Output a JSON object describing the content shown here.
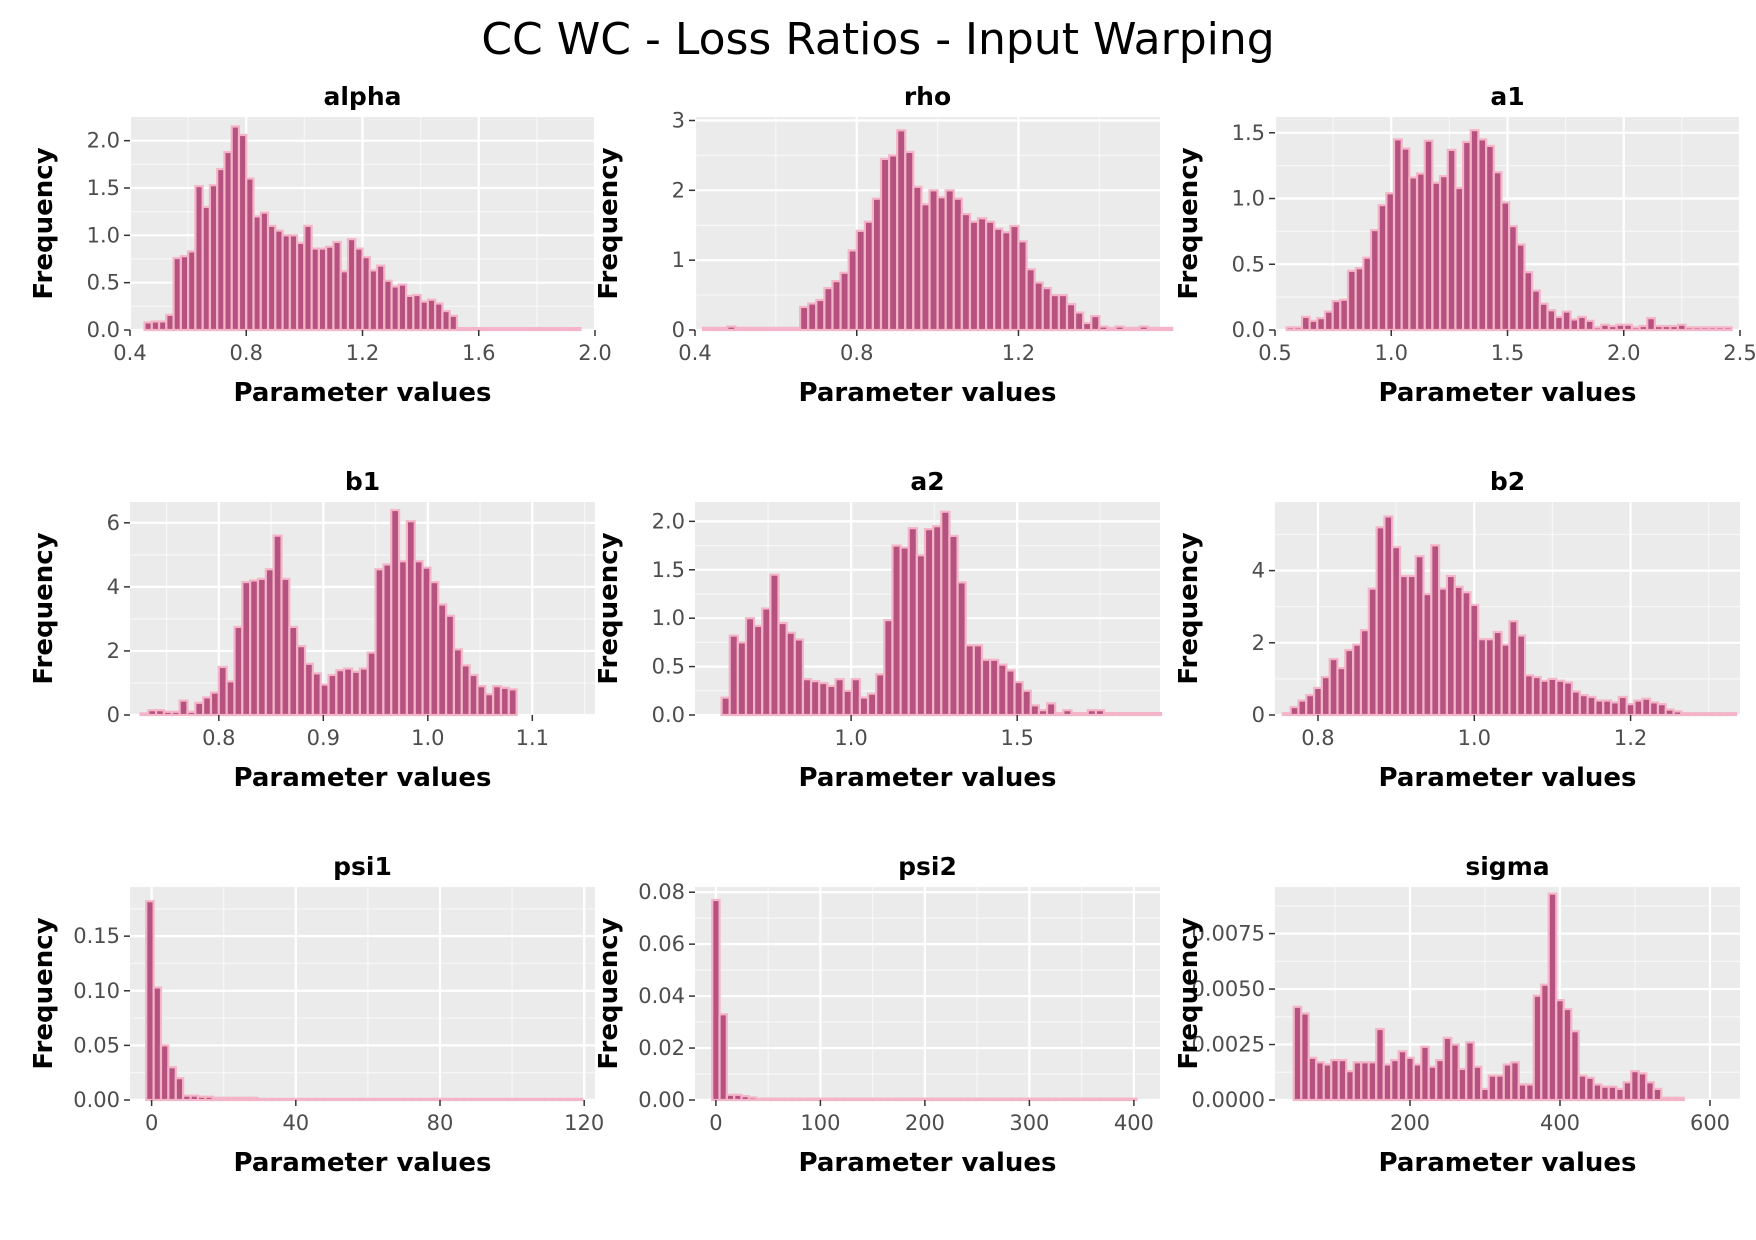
{
  "title": "CC WC - Loss Ratios - Input Warping",
  "style": {
    "panel_bg": "#EBEBEB",
    "grid_major": "#FFFFFF",
    "bar_fill": "#B5527F",
    "bar_stroke": "#F4B5C8",
    "text_dark": "#000000",
    "tick_text": "#4D4D4D"
  },
  "chart_data": [
    {
      "type": "bar",
      "title": "alpha",
      "xlabel": "Parameter values",
      "ylabel": "Frequency",
      "x_range": [
        0.4,
        2.0
      ],
      "ylim": [
        0,
        2.25
      ],
      "x_ticks": [
        0.4,
        0.8,
        1.2,
        1.6,
        2.0
      ],
      "x_tick_labels": [
        "0.4",
        "0.8",
        "1.2",
        "1.6",
        "2.0"
      ],
      "y_ticks": [
        0,
        0.5,
        1.0,
        1.5,
        2.0
      ],
      "y_tick_labels": [
        "0.0",
        "0.5",
        "1.0",
        "1.5",
        "2.0"
      ],
      "bins": {
        "start": 0.45,
        "width": 0.025,
        "values": [
          0.08,
          0.09,
          0.09,
          0.16,
          0.76,
          0.78,
          0.83,
          1.52,
          1.3,
          1.53,
          1.7,
          1.88,
          2.15,
          2.06,
          1.6,
          1.2,
          1.24,
          1.1,
          1.05,
          1.0,
          1.0,
          0.92,
          1.1,
          0.86,
          0.86,
          0.88,
          0.93,
          0.62,
          0.96,
          0.86,
          0.77,
          0.63,
          0.68,
          0.52,
          0.46,
          0.48,
          0.36,
          0.37,
          0.3,
          0.32,
          0.28,
          0.2,
          0.15,
          0.02,
          0.02,
          0.02,
          0.02,
          0.02,
          0.02,
          0.02,
          0.02,
          0.02,
          0.02,
          0.02,
          0.02,
          0.02,
          0.02,
          0.02,
          0.02,
          0.02
        ]
      }
    },
    {
      "type": "bar",
      "title": "rho",
      "xlabel": "Parameter values",
      "ylabel": "Frequency",
      "x_range": [
        0.4,
        1.55
      ],
      "ylim": [
        0,
        3.05
      ],
      "x_ticks": [
        0.4,
        0.8,
        1.2
      ],
      "x_tick_labels": [
        "0.4",
        "0.8",
        "1.2"
      ],
      "y_ticks": [
        0,
        1,
        2,
        3
      ],
      "y_tick_labels": [
        "0",
        "1",
        "2",
        "3"
      ],
      "bins": {
        "start": 0.42,
        "width": 0.02,
        "values": [
          0.03,
          0.03,
          0.03,
          0.05,
          0.03,
          0.03,
          0.03,
          0.03,
          0.03,
          0.03,
          0.03,
          0.03,
          0.33,
          0.38,
          0.43,
          0.6,
          0.7,
          0.82,
          1.14,
          1.42,
          1.55,
          1.88,
          2.45,
          2.5,
          2.86,
          2.55,
          2.05,
          1.8,
          2.0,
          1.9,
          2.0,
          1.88,
          1.66,
          1.55,
          1.6,
          1.55,
          1.45,
          1.4,
          1.49,
          1.27,
          0.87,
          0.68,
          0.6,
          0.5,
          0.5,
          0.37,
          0.25,
          0.1,
          0.2,
          0.05,
          0.03,
          0.05,
          0.03,
          0.03,
          0.05,
          0.03,
          0.03,
          0.03
        ]
      }
    },
    {
      "type": "bar",
      "title": "a1",
      "xlabel": "Parameter values",
      "ylabel": "Frequency",
      "x_range": [
        0.5,
        2.5
      ],
      "ylim": [
        0,
        1.62
      ],
      "x_ticks": [
        0.5,
        1.0,
        1.5,
        2.0,
        2.5
      ],
      "x_tick_labels": [
        "0.5",
        "1.0",
        "1.5",
        "2.0",
        "2.5"
      ],
      "y_ticks": [
        0,
        0.5,
        1.0,
        1.5
      ],
      "y_tick_labels": [
        "0.0",
        "0.5",
        "1.0",
        "1.5"
      ],
      "bins": {
        "start": 0.55,
        "width": 0.033,
        "values": [
          0.02,
          0.02,
          0.1,
          0.07,
          0.09,
          0.14,
          0.22,
          0.23,
          0.45,
          0.47,
          0.55,
          0.76,
          0.95,
          1.04,
          1.45,
          1.38,
          1.16,
          1.19,
          1.44,
          1.12,
          1.17,
          1.37,
          1.08,
          1.43,
          1.52,
          1.45,
          1.4,
          1.2,
          0.97,
          0.79,
          0.65,
          0.44,
          0.3,
          0.2,
          0.15,
          0.1,
          0.14,
          0.08,
          0.1,
          0.07,
          0.02,
          0.04,
          0.03,
          0.04,
          0.04,
          0.02,
          0.03,
          0.09,
          0.03,
          0.03,
          0.03,
          0.04,
          0.02,
          0.02,
          0.02,
          0.02,
          0.02,
          0.02
        ]
      }
    },
    {
      "type": "bar",
      "title": "b1",
      "xlabel": "Parameter values",
      "ylabel": "Frequency",
      "x_range": [
        0.715,
        1.16
      ],
      "ylim": [
        0,
        6.65
      ],
      "x_ticks": [
        0.8,
        0.9,
        1.0,
        1.1
      ],
      "x_tick_labels": [
        "0.8",
        "0.9",
        "1.0",
        "1.1"
      ],
      "y_ticks": [
        0,
        2,
        4,
        6
      ],
      "y_tick_labels": [
        "0",
        "2",
        "4",
        "6"
      ],
      "bins": {
        "start": 0.725,
        "width": 0.0075,
        "values": [
          0.05,
          0.15,
          0.15,
          0.1,
          0.1,
          0.45,
          0.1,
          0.38,
          0.55,
          0.7,
          1.5,
          1.05,
          2.75,
          4.15,
          4.2,
          4.25,
          4.55,
          5.6,
          4.25,
          2.75,
          2.15,
          1.6,
          1.3,
          0.95,
          1.25,
          1.4,
          1.45,
          1.35,
          1.45,
          1.95,
          4.55,
          4.7,
          6.4,
          4.8,
          6.05,
          4.8,
          4.6,
          4.15,
          3.45,
          3.1,
          2.05,
          1.55,
          1.25,
          0.9,
          0.65,
          0.9,
          0.85,
          0.8
        ]
      }
    },
    {
      "type": "bar",
      "title": "a2",
      "xlabel": "Parameter values",
      "ylabel": "Frequency",
      "x_range": [
        0.53,
        1.93
      ],
      "ylim": [
        0,
        2.2
      ],
      "x_ticks": [
        1.0,
        1.5
      ],
      "x_tick_labels": [
        "1.0",
        "1.5"
      ],
      "y_ticks": [
        0,
        0.5,
        1.0,
        1.5,
        2.0
      ],
      "y_tick_labels": [
        "0.0",
        "0.5",
        "1.0",
        "1.5",
        "2.0"
      ],
      "bins": {
        "start": 0.61,
        "width": 0.0245,
        "values": [
          0.18,
          0.82,
          0.75,
          1.0,
          0.92,
          1.1,
          1.45,
          0.95,
          0.85,
          0.78,
          0.37,
          0.35,
          0.33,
          0.3,
          0.37,
          0.25,
          0.37,
          0.18,
          0.22,
          0.42,
          0.98,
          1.75,
          1.73,
          1.93,
          1.65,
          1.92,
          1.95,
          2.1,
          1.85,
          1.37,
          0.72,
          0.72,
          0.57,
          0.57,
          0.52,
          0.46,
          0.34,
          0.25,
          0.1,
          0.05,
          0.12,
          0.02,
          0.05,
          0.02,
          0.02,
          0.05,
          0.05,
          0.02,
          0.02,
          0.02,
          0.02,
          0.02,
          0.02,
          0.02
        ]
      }
    },
    {
      "type": "bar",
      "title": "b2",
      "xlabel": "Parameter values",
      "ylabel": "Frequency",
      "x_range": [
        0.745,
        1.34
      ],
      "ylim": [
        0,
        5.9
      ],
      "x_ticks": [
        0.8,
        1.0,
        1.2
      ],
      "x_tick_labels": [
        "0.8",
        "1.0",
        "1.2"
      ],
      "y_ticks": [
        0,
        2,
        4
      ],
      "y_tick_labels": [
        "0",
        "2",
        "4"
      ],
      "bins": {
        "start": 0.755,
        "width": 0.01,
        "values": [
          0.05,
          0.22,
          0.4,
          0.55,
          0.75,
          1.05,
          1.55,
          1.3,
          1.8,
          1.95,
          2.35,
          3.5,
          5.2,
          5.5,
          4.65,
          3.85,
          3.85,
          4.4,
          3.35,
          4.7,
          3.5,
          3.85,
          3.55,
          3.4,
          3.05,
          2.1,
          2.1,
          2.3,
          1.95,
          2.6,
          2.2,
          1.1,
          1.05,
          0.95,
          1.0,
          0.95,
          0.9,
          0.65,
          0.55,
          0.5,
          0.4,
          0.4,
          0.35,
          0.5,
          0.3,
          0.4,
          0.45,
          0.35,
          0.3,
          0.15,
          0.1,
          0.05,
          0.05,
          0.05,
          0.05,
          0.05,
          0.05,
          0.05
        ]
      }
    },
    {
      "type": "bar",
      "title": "psi1",
      "xlabel": "Parameter values",
      "ylabel": "Frequency",
      "x_range": [
        -6,
        123
      ],
      "ylim": [
        0,
        0.195
      ],
      "x_ticks": [
        0,
        40,
        80,
        120
      ],
      "x_tick_labels": [
        "0",
        "40",
        "80",
        "120"
      ],
      "y_ticks": [
        0,
        0.05,
        0.1,
        0.15
      ],
      "y_tick_labels": [
        "0.00",
        "0.05",
        "0.10",
        "0.15"
      ],
      "bins": {
        "start": -1.5,
        "width": 2.05,
        "values": [
          0.182,
          0.103,
          0.05,
          0.03,
          0.02,
          0.004,
          0.004,
          0.003,
          0.003,
          0.002,
          0.002,
          0.002,
          0.002,
          0.002,
          0.002,
          0.001,
          0.001,
          0.001,
          0.001,
          0.001,
          0.001,
          0.001,
          0.001,
          0.001,
          0.001,
          0.001,
          0.001,
          0.001,
          0.001,
          0.001,
          0.001,
          0.001,
          0.001,
          0.001,
          0.001,
          0.001,
          0.001,
          0.001,
          0.001,
          0.001,
          0.001,
          0.001,
          0.001,
          0.001,
          0.001,
          0.001,
          0.001,
          0.001,
          0.001,
          0.001,
          0.001,
          0.001,
          0.001,
          0.001,
          0.001,
          0.001,
          0.001,
          0.001,
          0.001
        ]
      }
    },
    {
      "type": "bar",
      "title": "psi2",
      "xlabel": "Parameter values",
      "ylabel": "Frequency",
      "x_range": [
        -20,
        425
      ],
      "ylim": [
        0,
        0.082
      ],
      "x_ticks": [
        0,
        100,
        200,
        300,
        400
      ],
      "x_tick_labels": [
        "0",
        "100",
        "200",
        "300",
        "400"
      ],
      "y_ticks": [
        0,
        0.02,
        0.04,
        0.06,
        0.08
      ],
      "y_tick_labels": [
        "0.00",
        "0.02",
        "0.04",
        "0.06",
        "0.08"
      ],
      "bins": {
        "start": -3.5,
        "width": 7,
        "values": [
          0.077,
          0.033,
          0.002,
          0.002,
          0.0015,
          0.001,
          0.0005,
          0.0005,
          0.0005,
          0.0005,
          0.0005,
          0.0005,
          0.0005,
          0.0005,
          0.0005,
          0.0005,
          0.0005,
          0.0005,
          0.0005,
          0.0005,
          0.0005,
          0.0005,
          0.0005,
          0.0005,
          0.0005,
          0.0005,
          0.0005,
          0.0005,
          0.0005,
          0.0005,
          0.0005,
          0.0005,
          0.0005,
          0.0005,
          0.0005,
          0.0005,
          0.0005,
          0.0005,
          0.0005,
          0.0005,
          0.0005,
          0.0005,
          0.0005,
          0.0005,
          0.0005,
          0.0005,
          0.0005,
          0.0005,
          0.0005,
          0.0005,
          0.0005,
          0.0005,
          0.0005,
          0.0005,
          0.0005,
          0.0005,
          0.0005,
          0.0005
        ]
      }
    },
    {
      "type": "bar",
      "title": "sigma",
      "xlabel": "Parameter values",
      "ylabel": "Frequency",
      "x_range": [
        20,
        640
      ],
      "ylim": [
        0,
        0.0096
      ],
      "x_ticks": [
        200,
        400,
        600
      ],
      "x_tick_labels": [
        "200",
        "400",
        "600"
      ],
      "y_ticks": [
        0,
        0.0025,
        0.005,
        0.0075
      ],
      "y_tick_labels": [
        "0.0000",
        "0.0025",
        "0.0050",
        "0.0075"
      ],
      "bins": {
        "start": 45,
        "width": 10,
        "values": [
          0.0042,
          0.0039,
          0.0019,
          0.0017,
          0.0016,
          0.0018,
          0.0018,
          0.0013,
          0.0017,
          0.0017,
          0.0017,
          0.0032,
          0.0016,
          0.0018,
          0.0022,
          0.0019,
          0.0016,
          0.0024,
          0.0015,
          0.0018,
          0.0028,
          0.0025,
          0.0014,
          0.0026,
          0.0015,
          0.0005,
          0.0011,
          0.0011,
          0.0016,
          0.0017,
          0.0007,
          0.0007,
          0.0047,
          0.0052,
          0.0093,
          0.0045,
          0.0041,
          0.0031,
          0.0011,
          0.001,
          0.0007,
          0.0006,
          0.0006,
          0.0005,
          0.0008,
          0.0013,
          0.0012,
          0.0008,
          0.0005,
          0.0001,
          0.0001,
          0.0001
        ]
      }
    }
  ]
}
